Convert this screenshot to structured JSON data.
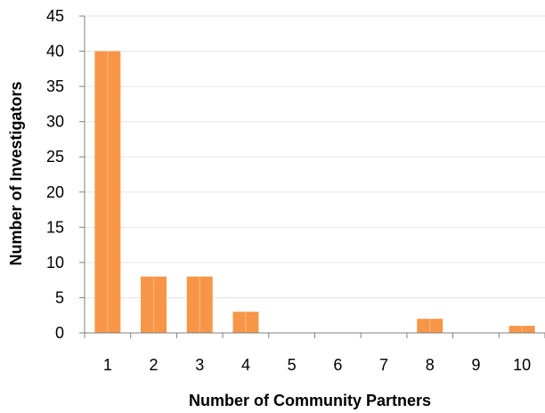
{
  "chart_data": {
    "type": "bar",
    "title": "",
    "xlabel": "Number of Community Partners",
    "ylabel": "Number of Investigators",
    "categories": [
      "1",
      "2",
      "3",
      "4",
      "5",
      "6",
      "7",
      "8",
      "9",
      "10"
    ],
    "values": [
      40,
      8,
      8,
      3,
      0,
      0,
      0,
      2,
      0,
      1
    ],
    "ylim": [
      0,
      45
    ],
    "yticks": [
      "0",
      "5",
      "10",
      "15",
      "20",
      "25",
      "30",
      "35",
      "40",
      "45"
    ],
    "grid": true,
    "legend": "none",
    "bar_color": "#F79646",
    "bar_edge_color": "#FFFFFF",
    "grid_color": "#E6E6E6",
    "axis_color": "#7F7F7F"
  }
}
